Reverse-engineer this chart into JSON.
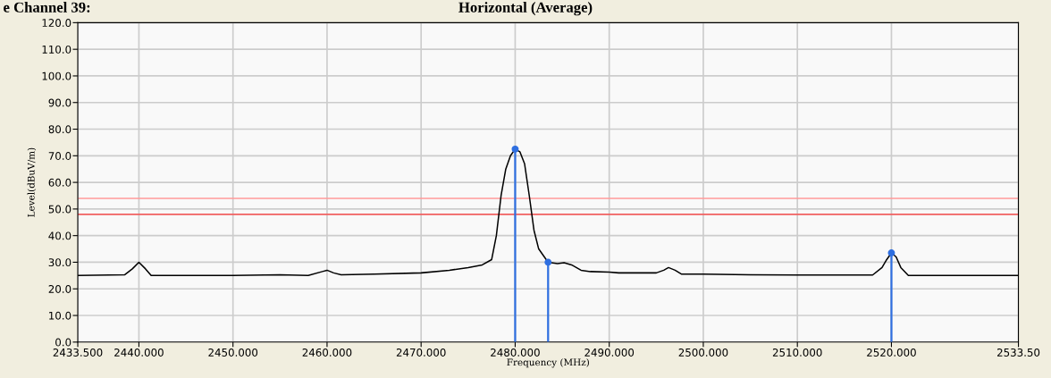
{
  "chart_data": {
    "type": "line",
    "title": "Horizontal (Average)",
    "annotations": [
      "e Channel 39:"
    ],
    "xlabel": "Frequency (MHz)",
    "ylabel": "Level(dBuV/m)",
    "series": [
      {
        "color": "#000000",
        "x": [
          2433.5,
          2438.5,
          2439.3,
          2440,
          2440.7,
          2441.3,
          2450,
          2455,
          2458,
          2459.5,
          2460,
          2460.7,
          2461.5,
          2465,
          2470,
          2473,
          2475,
          2476.5,
          2477.5,
          2478,
          2478.5,
          2479,
          2479.5,
          2480,
          2480.5,
          2481,
          2481.5,
          2482,
          2482.5,
          2483.5,
          2484.5,
          2485.2,
          2486,
          2487,
          2488,
          2490,
          2491,
          2495,
          2495.8,
          2496.3,
          2497,
          2497.7,
          2500,
          2505,
          2510,
          2518,
          2519,
          2519.5,
          2520,
          2520.5,
          2521,
          2521.8,
          2525,
          2533.5
        ],
        "values": [
          25,
          25.3,
          27.5,
          30,
          27.5,
          25,
          25,
          25.3,
          25,
          26.5,
          27,
          26,
          25.3,
          25.5,
          26,
          27,
          28,
          29,
          31,
          40,
          55,
          65,
          70,
          72.5,
          71.5,
          67,
          55,
          42,
          35,
          30,
          29.5,
          29.8,
          29,
          27,
          26.5,
          26.3,
          26,
          26,
          27,
          28,
          27,
          25.5,
          25.5,
          25.3,
          25.2,
          25.2,
          28,
          31,
          33.5,
          32,
          28,
          25,
          25,
          25
        ]
      },
      {
        "type": "lollipop",
        "marker": "circle",
        "color": "#2f6fe0",
        "x": [
          2480,
          2483.5,
          2520
        ],
        "values": [
          72.5,
          30,
          33.5
        ]
      }
    ],
    "ref_lines": [
      {
        "axis": "y",
        "value": 54,
        "color": "#ff9a9a"
      },
      {
        "axis": "y",
        "value": 48,
        "color": "#f06060"
      }
    ],
    "xlim": [
      2433.5,
      2533.5
    ],
    "ylim": [
      0,
      120
    ],
    "xticks": [
      {
        "value": 2433.5,
        "label": "2433.500"
      },
      {
        "value": 2440,
        "label": "2440.000"
      },
      {
        "value": 2450,
        "label": "2450.000"
      },
      {
        "value": 2460,
        "label": "2460.000"
      },
      {
        "value": 2470,
        "label": "2470.000"
      },
      {
        "value": 2480,
        "label": "2480.000"
      },
      {
        "value": 2490,
        "label": "2490.000"
      },
      {
        "value": 2500,
        "label": "2500.000"
      },
      {
        "value": 2510,
        "label": "2510.000"
      },
      {
        "value": 2520,
        "label": "2520.000"
      },
      {
        "value": 2533.5,
        "label": "2533.50"
      }
    ],
    "yticks": [
      {
        "value": 0,
        "label": "0.0"
      },
      {
        "value": 10,
        "label": "10.0"
      },
      {
        "value": 20,
        "label": "20.0"
      },
      {
        "value": 30,
        "label": "30.0"
      },
      {
        "value": 40,
        "label": "40.0"
      },
      {
        "value": 50,
        "label": "50.0"
      },
      {
        "value": 60,
        "label": "60.0"
      },
      {
        "value": 70,
        "label": "70.0"
      },
      {
        "value": 80,
        "label": "80.0"
      },
      {
        "value": 90,
        "label": "90.0"
      },
      {
        "value": 100,
        "label": "100.0"
      },
      {
        "value": 110,
        "label": "110.0"
      },
      {
        "value": 120,
        "label": "120.0"
      }
    ],
    "grid": true,
    "marker": "none",
    "line_style": "solid",
    "legend": false
  }
}
